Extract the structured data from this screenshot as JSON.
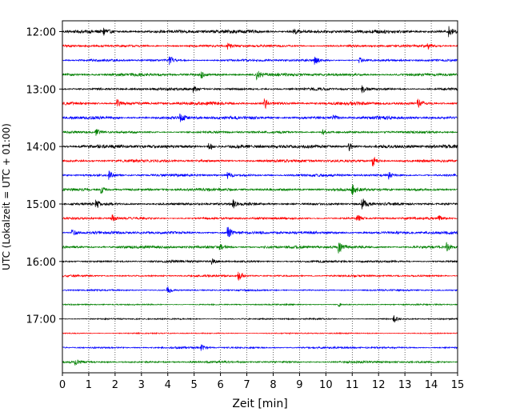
{
  "chart_data": {
    "type": "line",
    "title": "",
    "xlabel": "Zeit  [min]",
    "ylabel": "UTC (Lokalzeit = UTC + 01:00)",
    "xlim": [
      0,
      15
    ],
    "x_ticks": [
      "0",
      "1",
      "2",
      "3",
      "4",
      "5",
      "6",
      "7",
      "8",
      "9",
      "10",
      "11",
      "12",
      "13",
      "14",
      "15"
    ],
    "y_tick_labels": [
      "12:00",
      "13:00",
      "14:00",
      "15:00",
      "16:00",
      "17:00"
    ],
    "grid": "vertical dotted",
    "trace_colors": [
      "#000000",
      "#ff0000",
      "#0000ff",
      "#008000"
    ],
    "series": [
      {
        "start": "12:00",
        "color": "#000000",
        "amp": 0.22,
        "events": [
          [
            1.6,
            0.6
          ],
          [
            8.8,
            0.5
          ],
          [
            14.7,
            0.7
          ]
        ]
      },
      {
        "start": "12:15",
        "color": "#ff0000",
        "amp": 0.15,
        "events": [
          [
            6.3,
            0.5
          ],
          [
            13.9,
            0.4
          ]
        ]
      },
      {
        "start": "12:30",
        "color": "#0000ff",
        "amp": 0.14,
        "events": [
          [
            4.1,
            0.6
          ],
          [
            9.6,
            0.6
          ],
          [
            11.3,
            0.4
          ]
        ]
      },
      {
        "start": "12:45",
        "color": "#008000",
        "amp": 0.18,
        "events": [
          [
            7.4,
            0.8
          ],
          [
            5.3,
            0.4
          ]
        ]
      },
      {
        "start": "13:00",
        "color": "#000000",
        "amp": 0.16,
        "events": [
          [
            5.0,
            0.5
          ],
          [
            11.4,
            0.5
          ]
        ]
      },
      {
        "start": "13:15",
        "color": "#ff0000",
        "amp": 0.2,
        "events": [
          [
            2.1,
            0.6
          ],
          [
            7.7,
            0.7
          ],
          [
            13.5,
            0.7
          ]
        ]
      },
      {
        "start": "13:30",
        "color": "#0000ff",
        "amp": 0.2,
        "events": [
          [
            4.5,
            0.5
          ],
          [
            10.3,
            0.6
          ]
        ]
      },
      {
        "start": "13:45",
        "color": "#008000",
        "amp": 0.14,
        "events": [
          [
            1.3,
            0.5
          ],
          [
            9.9,
            0.4
          ]
        ]
      },
      {
        "start": "14:00",
        "color": "#000000",
        "amp": 0.22,
        "events": [
          [
            5.6,
            0.6
          ],
          [
            10.9,
            0.6
          ]
        ]
      },
      {
        "start": "14:15",
        "color": "#ff0000",
        "amp": 0.17,
        "events": [
          [
            11.8,
            0.9
          ]
        ]
      },
      {
        "start": "14:30",
        "color": "#0000ff",
        "amp": 0.16,
        "events": [
          [
            1.8,
            0.6
          ],
          [
            6.3,
            0.5
          ],
          [
            12.4,
            0.5
          ]
        ]
      },
      {
        "start": "14:45",
        "color": "#008000",
        "amp": 0.18,
        "events": [
          [
            1.5,
            0.6
          ],
          [
            11.0,
            0.8
          ]
        ]
      },
      {
        "start": "15:00",
        "color": "#000000",
        "amp": 0.17,
        "events": [
          [
            11.4,
            1.1
          ],
          [
            6.5,
            0.5
          ],
          [
            1.3,
            0.5
          ]
        ]
      },
      {
        "start": "15:15",
        "color": "#ff0000",
        "amp": 0.14,
        "events": [
          [
            1.9,
            0.5
          ],
          [
            11.2,
            0.6
          ],
          [
            14.3,
            0.4
          ]
        ]
      },
      {
        "start": "15:30",
        "color": "#0000ff",
        "amp": 0.18,
        "events": [
          [
            6.3,
            0.9
          ],
          [
            0.4,
            0.5
          ]
        ]
      },
      {
        "start": "15:45",
        "color": "#008000",
        "amp": 0.18,
        "events": [
          [
            10.5,
            0.8
          ],
          [
            6.0,
            0.5
          ],
          [
            14.6,
            0.6
          ]
        ]
      },
      {
        "start": "16:00",
        "color": "#000000",
        "amp": 0.14,
        "events": [
          [
            5.7,
            0.4
          ]
        ]
      },
      {
        "start": "16:15",
        "color": "#ff0000",
        "amp": 0.12,
        "events": [
          [
            6.7,
            0.9
          ]
        ]
      },
      {
        "start": "16:30",
        "color": "#0000ff",
        "amp": 0.1,
        "events": [
          [
            4.0,
            0.6
          ]
        ]
      },
      {
        "start": "16:45",
        "color": "#008000",
        "amp": 0.08,
        "events": [
          [
            10.5,
            0.3
          ]
        ]
      },
      {
        "start": "17:00",
        "color": "#000000",
        "amp": 0.09,
        "events": [
          [
            12.6,
            0.5
          ]
        ]
      },
      {
        "start": "17:15",
        "color": "#ff0000",
        "amp": 0.07,
        "events": []
      },
      {
        "start": "17:30",
        "color": "#0000ff",
        "amp": 0.12,
        "events": [
          [
            5.3,
            0.4
          ]
        ]
      },
      {
        "start": "17:45",
        "color": "#008000",
        "amp": 0.13,
        "events": [
          [
            0.5,
            0.4
          ]
        ]
      }
    ]
  }
}
